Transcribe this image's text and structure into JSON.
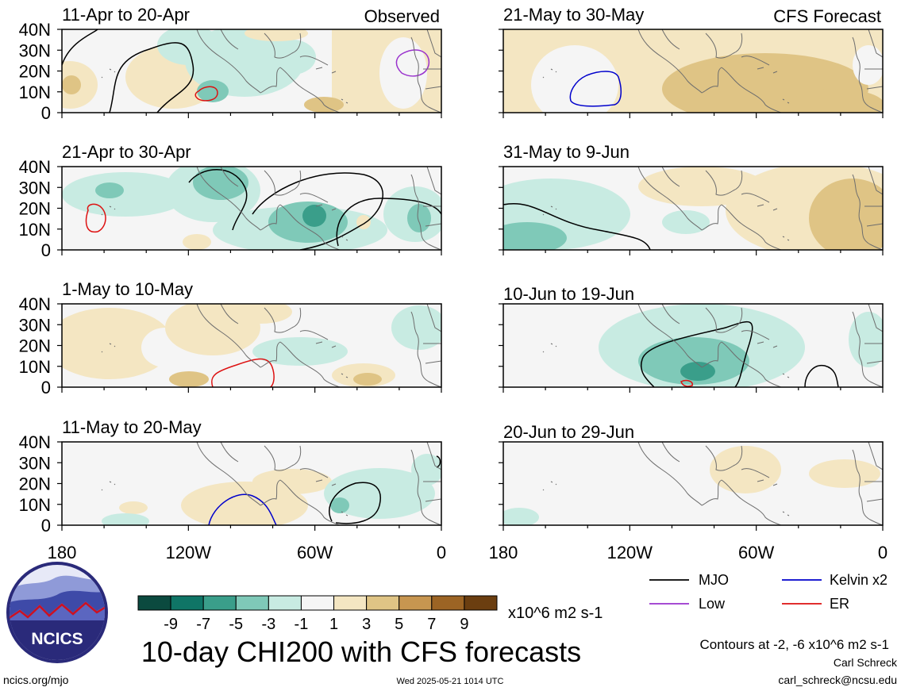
{
  "figure": {
    "title": "10-day CHI200 with CFS forecasts",
    "observed_label": "Observed",
    "forecast_label": "CFS Forecast",
    "site": "ncics.org/mjo",
    "timestamp": "Wed 2025-05-21 1014 UTC",
    "author": "Carl Schreck",
    "email": "carl_schreck@ncsu.edu",
    "contours_note": "Contours at -2, -6 x10^6 m2 s-1",
    "logo_text": "NCICS"
  },
  "panels": [
    {
      "title": "11-Apr to 20-Apr",
      "kind": "observed"
    },
    {
      "title": "21-Apr to 30-Apr",
      "kind": "observed"
    },
    {
      "title": "1-May to 10-May",
      "kind": "observed"
    },
    {
      "title": "11-May to 20-May",
      "kind": "observed"
    },
    {
      "title": "21-May to 30-May",
      "kind": "forecast"
    },
    {
      "title": "31-May to 9-Jun",
      "kind": "forecast"
    },
    {
      "title": "10-Jun to 19-Jun",
      "kind": "forecast"
    },
    {
      "title": "20-Jun to 29-Jun",
      "kind": "forecast"
    }
  ],
  "axes": {
    "lat_labels": [
      "40N",
      "30N",
      "20N",
      "10N",
      "0"
    ],
    "lon_labels": [
      "180",
      "120W",
      "60W",
      "0"
    ]
  },
  "colorbar": {
    "labels": [
      "-9",
      "-7",
      "-5",
      "-3",
      "-1",
      "1",
      "3",
      "5",
      "7",
      "9"
    ],
    "units": "x10^6 m2 s-1",
    "colors": [
      "#0b4a3f",
      "#0f7566",
      "#3a9e8a",
      "#7fc9b8",
      "#c8ebe2",
      "#f5f5f5",
      "#f4e6c2",
      "#dfc485",
      "#c79650",
      "#9c6424",
      "#6b3e10"
    ]
  },
  "legend": [
    {
      "label": "MJO",
      "color": "#000000"
    },
    {
      "label": "Kelvin x2",
      "color": "#0000cc"
    },
    {
      "label": "Low",
      "color": "#9a32cd"
    },
    {
      "label": "ER",
      "color": "#dd1111"
    }
  ]
}
